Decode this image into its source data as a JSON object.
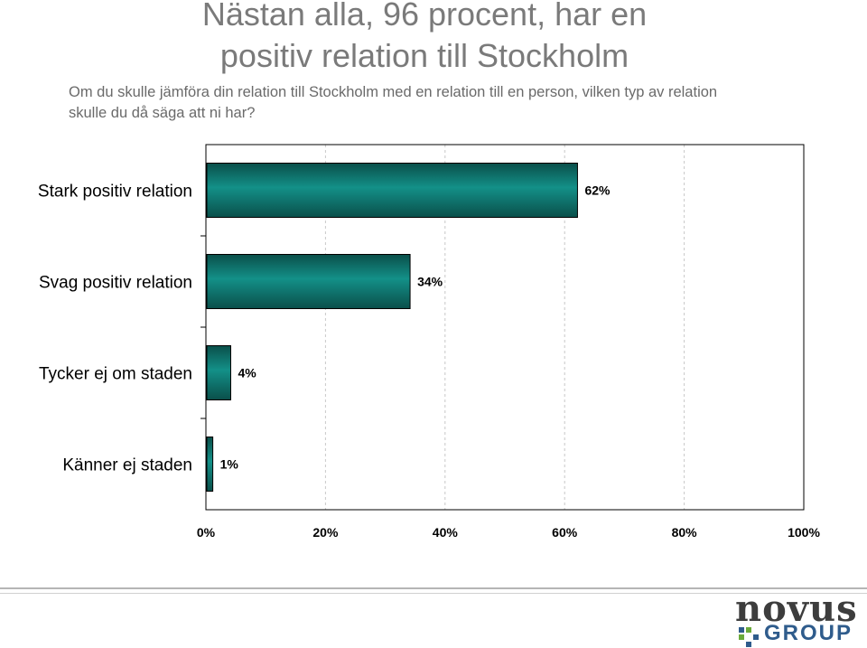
{
  "header": {
    "title_line1": "Nästan alla, 96 procent, har en",
    "title_line2": "positiv relation till Stockholm",
    "subtitle_line1": "Om du skulle jämföra din relation till Stockholm med en relation till en person, vilken typ av relation",
    "subtitle_line2": "skulle du då säga att ni har?"
  },
  "chart_data": {
    "type": "bar",
    "orientation": "horizontal",
    "categories": [
      "Stark positiv relation",
      "Svag positiv relation",
      "Tycker ej om staden",
      "Känner ej staden"
    ],
    "values": [
      62,
      34,
      4,
      1
    ],
    "value_labels": [
      "62%",
      "34%",
      "4%",
      "1%"
    ],
    "xlim": [
      0,
      100
    ],
    "x_ticks": [
      "0%",
      "20%",
      "40%",
      "60%",
      "80%",
      "100%"
    ],
    "grid": true,
    "legend": "none",
    "bar_color": "#0e7a72",
    "bar_edge_color": "#000000"
  },
  "logo": {
    "text_top": "novus",
    "text_bottom": "GROUP",
    "colors": {
      "dark": "#3d3d3d",
      "blue": "#2f5c8c",
      "green": "#6aaa3a"
    }
  }
}
